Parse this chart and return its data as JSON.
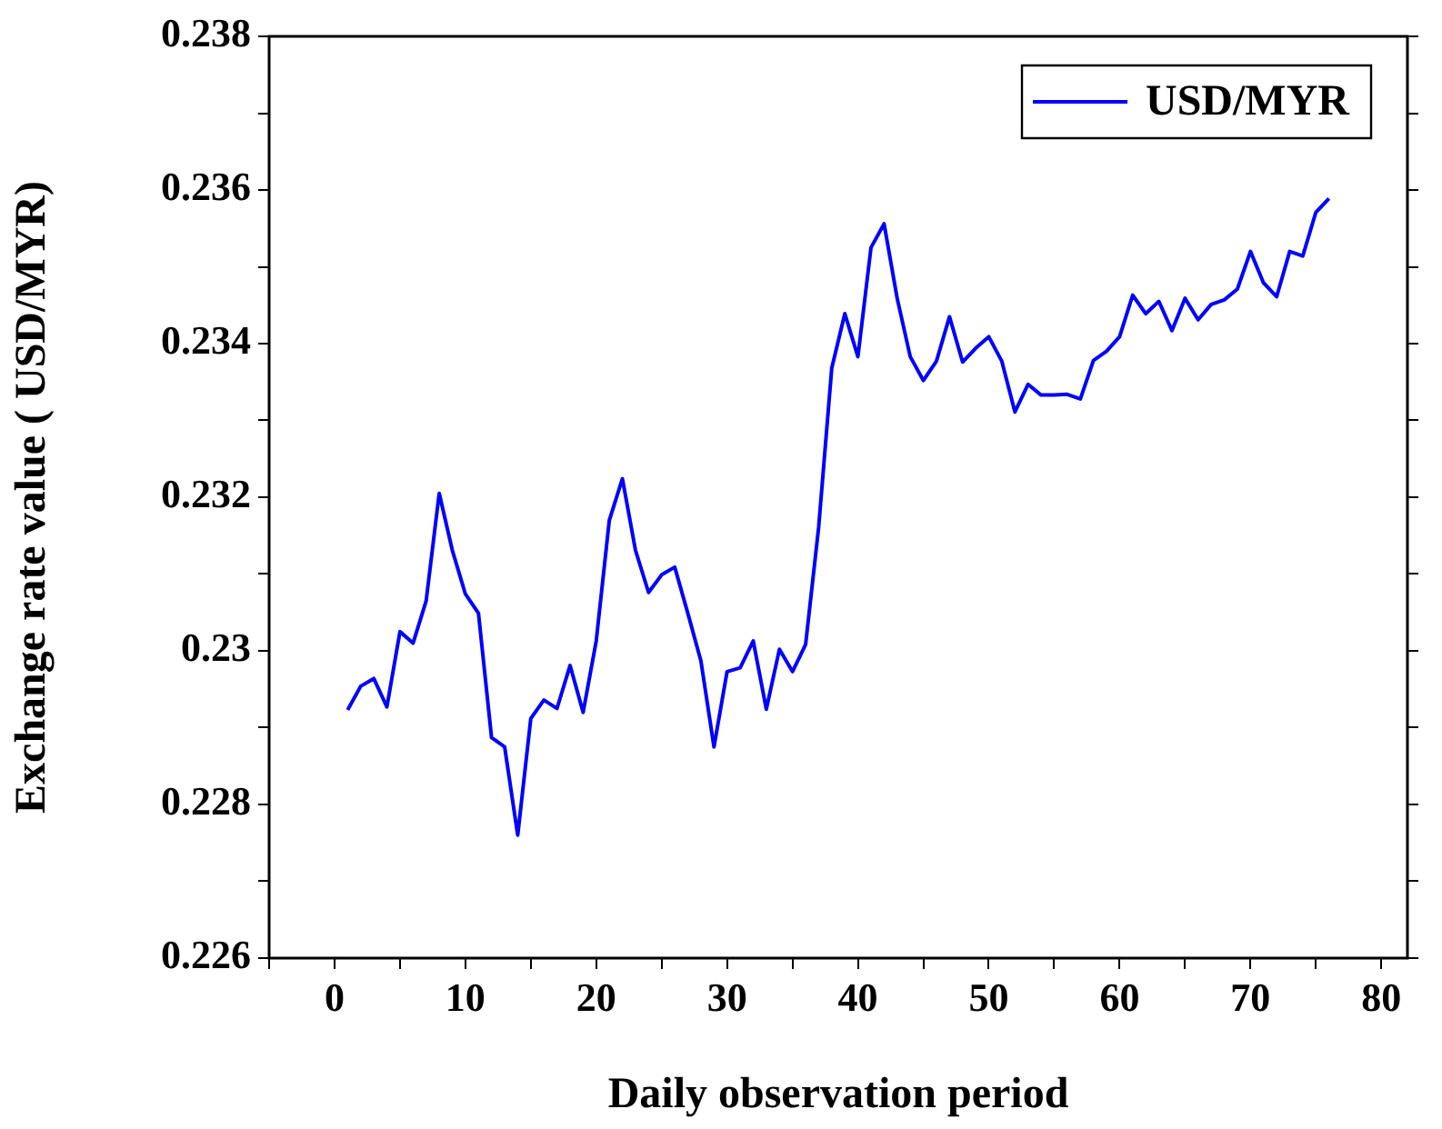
{
  "chart_data": {
    "type": "line",
    "xlabel": "Daily observation period",
    "ylabel": "Exchange rate value ( USD/MYR)",
    "x": [
      1,
      2,
      3,
      4,
      5,
      6,
      7,
      8,
      9,
      10,
      11,
      12,
      13,
      14,
      15,
      16,
      17,
      18,
      19,
      20,
      21,
      22,
      23,
      24,
      25,
      26,
      27,
      28,
      29,
      30,
      31,
      32,
      33,
      34,
      35,
      36,
      37,
      38,
      39,
      40,
      41,
      42,
      43,
      44,
      45,
      46,
      47,
      48,
      49,
      50,
      51,
      52,
      53,
      54,
      55,
      56,
      57,
      58,
      59,
      60,
      61,
      62,
      63,
      64,
      65,
      66,
      67,
      68,
      69,
      70,
      71,
      72,
      73,
      74,
      75,
      76
    ],
    "series": [
      {
        "name": "USD/MYR",
        "color": "#0000ff",
        "values": [
          0.22923,
          0.22954,
          0.22964,
          0.22927,
          0.23025,
          0.2301,
          0.23065,
          0.23205,
          0.23131,
          0.23074,
          0.23049,
          0.22887,
          0.22875,
          0.2276,
          0.22912,
          0.22936,
          0.22925,
          0.22981,
          0.2292,
          0.23013,
          0.2317,
          0.23224,
          0.23131,
          0.23076,
          0.23099,
          0.23109,
          0.23049,
          0.22987,
          0.22875,
          0.22973,
          0.22978,
          0.23013,
          0.22924,
          0.23002,
          0.22973,
          0.23008,
          0.23161,
          0.23368,
          0.23439,
          0.23383,
          0.23525,
          0.23556,
          0.23459,
          0.23383,
          0.23352,
          0.23377,
          0.23435,
          0.23376,
          0.23394,
          0.23409,
          0.23377,
          0.23311,
          0.23347,
          0.23333,
          0.23333,
          0.23334,
          0.23328,
          0.23378,
          0.2339,
          0.23409,
          0.23463,
          0.23439,
          0.23455,
          0.23417,
          0.23459,
          0.23431,
          0.23451,
          0.23457,
          0.23471,
          0.2352,
          0.23479,
          0.23461,
          0.2352,
          0.23514,
          0.23571,
          0.23589
        ]
      }
    ],
    "xlim": [
      -5,
      82
    ],
    "xticks": [
      {
        "value": -5,
        "label": null
      },
      0,
      {
        "value": 5,
        "label": null
      },
      10,
      {
        "value": 15,
        "label": null
      },
      20,
      {
        "value": 25,
        "label": null
      },
      30,
      {
        "value": 35,
        "label": null
      },
      40,
      {
        "value": 45,
        "label": null
      },
      50,
      {
        "value": 55,
        "label": null
      },
      60,
      {
        "value": 65,
        "label": null
      },
      70,
      {
        "value": 75,
        "label": null
      },
      80
    ],
    "ylim": [
      0.226,
      0.238
    ],
    "yticks": [
      0.226,
      {
        "value": 0.227,
        "label": null
      },
      0.228,
      {
        "value": 0.229,
        "label": null
      },
      0.23,
      {
        "value": 0.231,
        "label": null
      },
      0.232,
      {
        "value": 0.233,
        "label": null
      },
      0.234,
      {
        "value": 0.235,
        "label": null
      },
      0.236,
      {
        "value": 0.237,
        "label": null
      },
      0.238
    ],
    "legend": "top right",
    "grid": false,
    "marker": "none",
    "line_style": "solid"
  }
}
